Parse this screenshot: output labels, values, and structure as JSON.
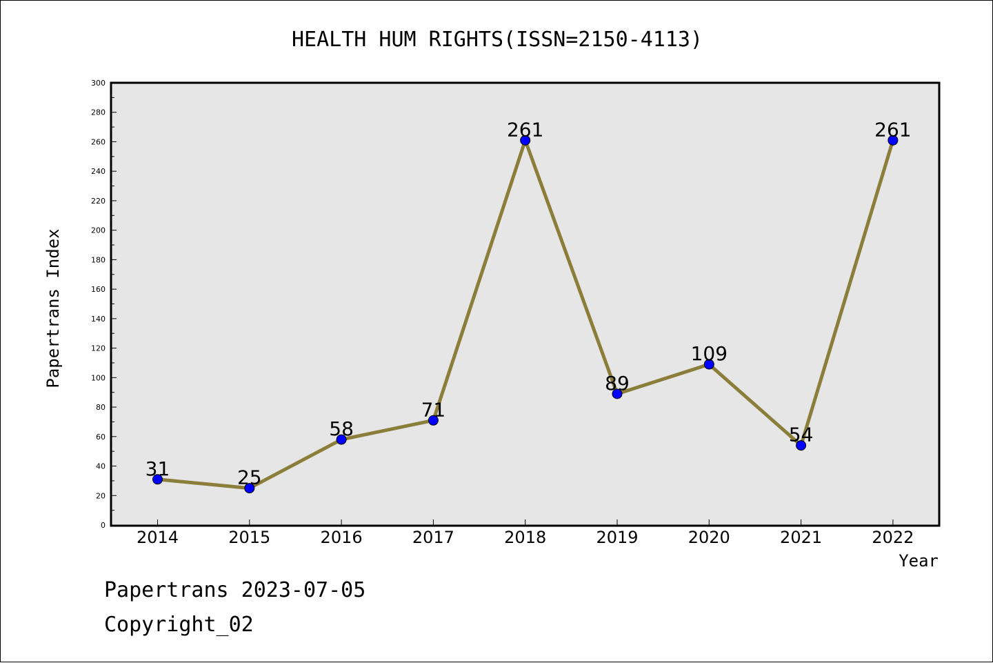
{
  "chart_data": {
    "type": "line",
    "title": "HEALTH HUM RIGHTS(ISSN=2150-4113)",
    "xlabel": "Year",
    "ylabel": "Papertrans Index",
    "categories": [
      "2014",
      "2015",
      "2016",
      "2017",
      "2018",
      "2019",
      "2020",
      "2021",
      "2022"
    ],
    "series": [
      {
        "values": [
          31,
          25,
          58,
          71,
          261,
          89,
          109,
          54,
          261
        ]
      }
    ],
    "data_labels": [
      "31",
      "25",
      "58",
      "71",
      "261",
      "89",
      "109",
      "54",
      "261"
    ],
    "ylim": [
      0,
      300
    ],
    "yticks": [
      "0",
      "20",
      "40",
      "60",
      "80",
      "100",
      "120",
      "140",
      "160",
      "180",
      "200",
      "220",
      "240",
      "260",
      "280",
      "300"
    ],
    "grid": false,
    "legend": "none",
    "colors": {
      "line": "#8b7d3a",
      "marker": "#0000ff",
      "plot_background": "#e6e6e6"
    }
  },
  "footer": {
    "line1": "Papertrans 2023-07-05",
    "line2": "Copyright_02"
  }
}
